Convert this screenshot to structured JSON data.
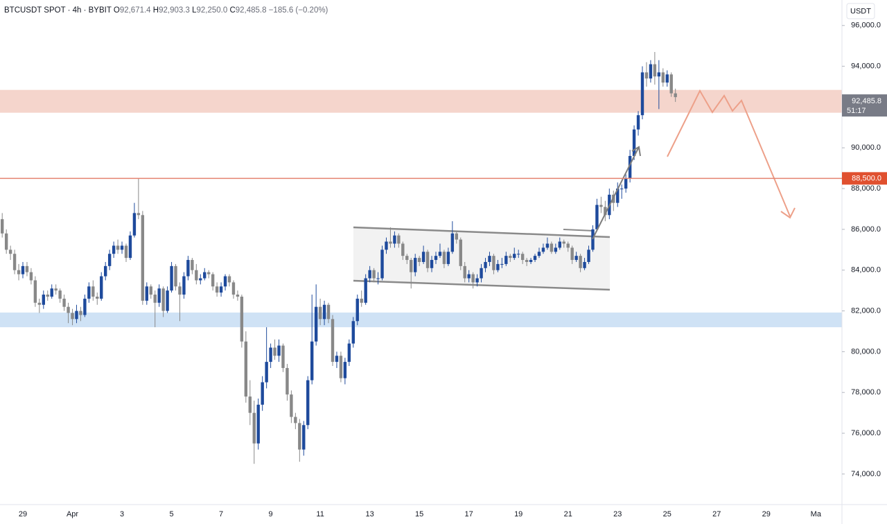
{
  "chart_data": {
    "type": "candlestick",
    "header": {
      "symbol": "BTCUSDT SPOT · 4h · BYBIT",
      "ohlc": [
        {
          "key": "O",
          "value": "92,671.4"
        },
        {
          "key": "H",
          "value": "92,903.3"
        },
        {
          "key": "L",
          "value": "92,250.0"
        },
        {
          "key": "C",
          "value": "92,485.8"
        }
      ],
      "change": "−185.6 (−0.20%)"
    },
    "currency": "USDT",
    "up_color": "#1e4a9c",
    "down_color": "#888888",
    "ylim": [
      72500,
      97250
    ],
    "yticks": [
      {
        "value": 74000,
        "label": "74,000.0"
      },
      {
        "value": 76000,
        "label": "76,000.0"
      },
      {
        "value": 78000,
        "label": "78,000.0"
      },
      {
        "value": 80000,
        "label": "80,000.0"
      },
      {
        "value": 82000,
        "label": "82,000.0"
      },
      {
        "value": 84000,
        "label": "84,000.0"
      },
      {
        "value": 86000,
        "label": "86,000.0"
      },
      {
        "value": 88000,
        "label": "88,000.0"
      },
      {
        "value": 90000,
        "label": "90,000.0"
      },
      {
        "value": 92000,
        "label": "92,000.0"
      },
      {
        "value": 94000,
        "label": "94,000.0"
      },
      {
        "value": 96000,
        "label": "96,000.0"
      }
    ],
    "xticks": [
      "29",
      "Apr",
      "3",
      "5",
      "7",
      "9",
      "11",
      "13",
      "15",
      "17",
      "19",
      "21",
      "23",
      "25",
      "27",
      "29",
      "Ma"
    ],
    "grid": false,
    "zones": [
      {
        "from": 91720,
        "to": 92840,
        "color": "#f5d5cc"
      },
      {
        "from": 81200,
        "to": 81920,
        "color": "#cfe2f5"
      }
    ],
    "price_line": {
      "value": 88500,
      "label": "88,500.0",
      "color": "#e4826f",
      "label_color": "#e0502f"
    },
    "last_price": {
      "value": 92485.8,
      "label": "92,485.8",
      "countdown": "51:17",
      "color": "#787b86"
    },
    "series": [
      {
        "values": [
          [
            86500,
            86800,
            85600,
            85800
          ],
          [
            85800,
            86000,
            84800,
            85000
          ],
          [
            85000,
            85200,
            84500,
            84800
          ],
          [
            84800,
            85000,
            83800,
            84000
          ],
          [
            84000,
            84300,
            83500,
            83800
          ],
          [
            83800,
            84400,
            83600,
            84200
          ],
          [
            84200,
            84400,
            83700,
            83900
          ],
          [
            83900,
            84100,
            83300,
            83500
          ],
          [
            83500,
            83700,
            82200,
            82400
          ],
          [
            82400,
            82600,
            81900,
            82300
          ],
          [
            82300,
            83000,
            82100,
            82800
          ],
          [
            82800,
            83000,
            82500,
            82700
          ],
          [
            82700,
            83300,
            82600,
            83100
          ],
          [
            83100,
            83300,
            82800,
            83000
          ],
          [
            83000,
            83100,
            82400,
            82600
          ],
          [
            82600,
            82800,
            82000,
            82200
          ],
          [
            82200,
            82400,
            81400,
            81900
          ],
          [
            81900,
            82100,
            81300,
            81600
          ],
          [
            81600,
            82300,
            81400,
            82000
          ],
          [
            82000,
            82200,
            81500,
            81800
          ],
          [
            81800,
            82800,
            81700,
            82600
          ],
          [
            82600,
            83400,
            82400,
            83200
          ],
          [
            83200,
            83500,
            82500,
            82700
          ],
          [
            82700,
            82900,
            82300,
            82600
          ],
          [
            82600,
            83900,
            82500,
            83700
          ],
          [
            83700,
            84400,
            83500,
            84200
          ],
          [
            84200,
            85000,
            84000,
            84800
          ],
          [
            84800,
            85400,
            84600,
            85200
          ],
          [
            85200,
            85500,
            84800,
            85000
          ],
          [
            85000,
            85400,
            84800,
            85200
          ],
          [
            85200,
            85300,
            84400,
            84600
          ],
          [
            84600,
            85900,
            84500,
            85700
          ],
          [
            85700,
            87300,
            85600,
            86800
          ],
          [
            86800,
            88500,
            86500,
            86700
          ],
          [
            86700,
            86900,
            82300,
            82500
          ],
          [
            82500,
            83400,
            82300,
            83200
          ],
          [
            83200,
            83300,
            82600,
            82800
          ],
          [
            82800,
            83000,
            81200,
            82400
          ],
          [
            82400,
            83300,
            82200,
            83100
          ],
          [
            83100,
            83200,
            81700,
            82000
          ],
          [
            82000,
            83200,
            81900,
            83000
          ],
          [
            83000,
            84400,
            82900,
            84200
          ],
          [
            84200,
            84300,
            83000,
            83200
          ],
          [
            83200,
            83400,
            81500,
            82800
          ],
          [
            82800,
            83900,
            82600,
            83700
          ],
          [
            83700,
            84700,
            83500,
            84500
          ],
          [
            84500,
            84600,
            83800,
            84000
          ],
          [
            84000,
            84300,
            83300,
            83500
          ],
          [
            83500,
            83800,
            83300,
            83600
          ],
          [
            83600,
            84100,
            83500,
            83900
          ],
          [
            83900,
            84000,
            83600,
            83800
          ],
          [
            83800,
            83900,
            83000,
            83200
          ],
          [
            83200,
            83400,
            82700,
            82900
          ],
          [
            82900,
            83400,
            82700,
            83200
          ],
          [
            83200,
            83800,
            83000,
            83700
          ],
          [
            83700,
            83800,
            83200,
            83400
          ],
          [
            83400,
            83500,
            82600,
            82800
          ],
          [
            82800,
            83000,
            82500,
            82700
          ],
          [
            82700,
            82800,
            80200,
            80500
          ],
          [
            80500,
            81000,
            77500,
            77800
          ],
          [
            77800,
            78600,
            76400,
            77000
          ],
          [
            77000,
            77600,
            74500,
            75500
          ],
          [
            75500,
            77700,
            75200,
            77400
          ],
          [
            77400,
            78800,
            77100,
            78500
          ],
          [
            78500,
            81200,
            78200,
            79500
          ],
          [
            79500,
            80400,
            79200,
            80200
          ],
          [
            80200,
            80600,
            79600,
            79800
          ],
          [
            79800,
            80600,
            79500,
            80300
          ],
          [
            80300,
            80400,
            79000,
            79200
          ],
          [
            79200,
            79400,
            77600,
            77900
          ],
          [
            77900,
            78100,
            76500,
            76800
          ],
          [
            76800,
            77000,
            76200,
            76500
          ],
          [
            76500,
            76700,
            74600,
            75200
          ],
          [
            75200,
            76600,
            74900,
            76400
          ],
          [
            76400,
            78800,
            76200,
            78600
          ],
          [
            78600,
            82800,
            78400,
            80500
          ],
          [
            80500,
            83300,
            80300,
            82200
          ],
          [
            82200,
            82600,
            81300,
            81600
          ],
          [
            81600,
            82500,
            81300,
            82300
          ],
          [
            82300,
            82400,
            81400,
            81600
          ],
          [
            81600,
            81800,
            79300,
            79500
          ],
          [
            79500,
            80000,
            79200,
            79800
          ],
          [
            79800,
            80000,
            78500,
            78700
          ],
          [
            78700,
            79700,
            78400,
            79500
          ],
          [
            79500,
            80600,
            79300,
            80400
          ],
          [
            80400,
            81700,
            80200,
            81500
          ],
          [
            81500,
            82800,
            81300,
            82600
          ],
          [
            82600,
            83000,
            82200,
            82400
          ],
          [
            82400,
            83800,
            82300,
            83600
          ],
          [
            83600,
            84200,
            83400,
            84000
          ],
          [
            84000,
            84100,
            83400,
            83600
          ],
          [
            83600,
            83900,
            83300,
            83600
          ],
          [
            83600,
            85200,
            83500,
            85000
          ],
          [
            85000,
            85600,
            84800,
            85400
          ],
          [
            85400,
            86100,
            85100,
            85300
          ],
          [
            85300,
            85900,
            85100,
            85700
          ],
          [
            85700,
            85800,
            85100,
            85300
          ],
          [
            85300,
            85400,
            84500,
            84700
          ],
          [
            84700,
            84800,
            84300,
            84500
          ],
          [
            84500,
            84600,
            83100,
            83900
          ],
          [
            83900,
            84800,
            83700,
            84600
          ],
          [
            84600,
            84700,
            84200,
            84400
          ],
          [
            84400,
            85200,
            84300,
            84900
          ],
          [
            84900,
            85000,
            83900,
            84100
          ],
          [
            84100,
            84700,
            83900,
            84500
          ],
          [
            84500,
            84900,
            84300,
            84700
          ],
          [
            84700,
            85300,
            84600,
            84900
          ],
          [
            84900,
            85000,
            84100,
            84300
          ],
          [
            84300,
            85100,
            84200,
            84900
          ],
          [
            84900,
            86400,
            84800,
            85800
          ],
          [
            85800,
            85900,
            85300,
            85500
          ],
          [
            85500,
            85600,
            84000,
            84200
          ],
          [
            84200,
            84400,
            83400,
            83600
          ],
          [
            83600,
            84000,
            83400,
            83800
          ],
          [
            83800,
            83900,
            83100,
            83400
          ],
          [
            83400,
            83800,
            83200,
            83600
          ],
          [
            83600,
            84300,
            83400,
            84100
          ],
          [
            84100,
            84600,
            83900,
            84400
          ],
          [
            84400,
            84900,
            84200,
            84700
          ],
          [
            84700,
            84800,
            83800,
            84000
          ],
          [
            84000,
            84500,
            83900,
            84300
          ],
          [
            84300,
            84600,
            84100,
            84300
          ],
          [
            84300,
            84900,
            84200,
            84700
          ],
          [
            84700,
            84800,
            84400,
            84600
          ],
          [
            84600,
            85100,
            84500,
            84800
          ],
          [
            84800,
            85000,
            84600,
            84800
          ],
          [
            84800,
            84900,
            84300,
            84500
          ],
          [
            84500,
            84600,
            84200,
            84400
          ],
          [
            84400,
            84600,
            84300,
            84500
          ],
          [
            84500,
            84800,
            84400,
            84700
          ],
          [
            84700,
            85100,
            84600,
            84900
          ],
          [
            84900,
            85300,
            84800,
            85100
          ],
          [
            85100,
            85600,
            85000,
            85300
          ],
          [
            85300,
            85400,
            84800,
            84900
          ],
          [
            84900,
            85300,
            84800,
            85100
          ],
          [
            85100,
            85600,
            85000,
            85400
          ],
          [
            85400,
            85500,
            85100,
            85300
          ],
          [
            85300,
            85400,
            84900,
            85100
          ],
          [
            85100,
            85200,
            84300,
            84500
          ],
          [
            84500,
            84900,
            84400,
            84700
          ],
          [
            84700,
            84800,
            83900,
            84100
          ],
          [
            84100,
            84600,
            84000,
            84400
          ],
          [
            84400,
            85200,
            84300,
            85000
          ],
          [
            85000,
            86200,
            84900,
            86000
          ],
          [
            86000,
            87500,
            85900,
            87200
          ],
          [
            87200,
            87600,
            86800,
            87100
          ],
          [
            87100,
            87400,
            86400,
            86700
          ],
          [
            86700,
            88000,
            86500,
            87700
          ],
          [
            87700,
            87900,
            86900,
            87300
          ],
          [
            87300,
            88300,
            87100,
            88000
          ],
          [
            88000,
            88200,
            87500,
            88000
          ],
          [
            88000,
            88700,
            87800,
            88500
          ],
          [
            88500,
            89900,
            88300,
            89600
          ],
          [
            89600,
            91100,
            89400,
            90900
          ],
          [
            90900,
            91800,
            90600,
            91600
          ],
          [
            91600,
            94000,
            91400,
            93700
          ],
          [
            93700,
            94200,
            93000,
            93400
          ],
          [
            93400,
            94300,
            93200,
            94100
          ],
          [
            94100,
            94700,
            93100,
            93500
          ],
          [
            93500,
            94300,
            91900,
            93700
          ],
          [
            93700,
            93900,
            93000,
            93200
          ],
          [
            93200,
            93800,
            93000,
            93600
          ],
          [
            93600,
            93700,
            92500,
            92671.4
          ],
          [
            92671.4,
            92903.3,
            92250,
            92485.8
          ]
        ]
      }
    ]
  }
}
